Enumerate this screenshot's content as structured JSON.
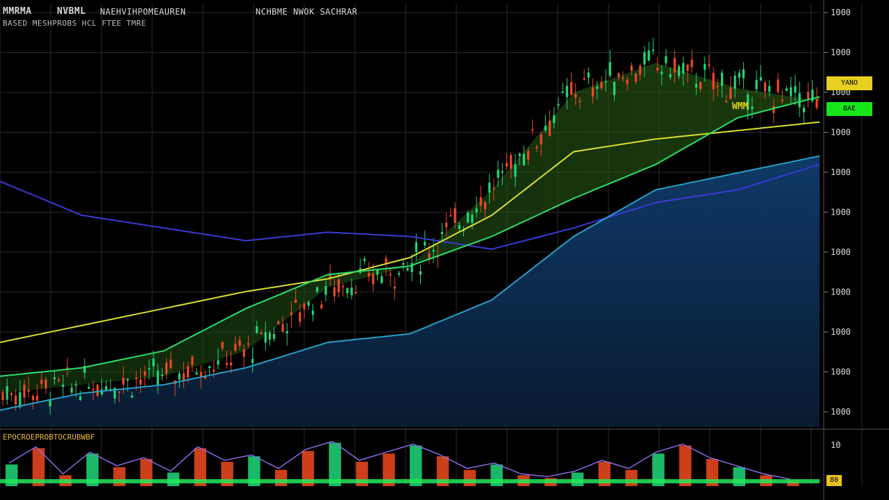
{
  "header": {
    "symbol": "MMRMA",
    "name": "NVBML",
    "description": "NAEHVIHPOMEAUREN",
    "extra": "NCHBME   NWOK  SACHRAR",
    "subtitle": "BASED  MESHPROBS  HCL  FTEE  TMRE"
  },
  "indicator": {
    "label": "EPOCROEPROBTOCRUBWBF",
    "tag": "80"
  },
  "overlay_label": "WMM",
  "price_tags": {
    "yellow": "YANO",
    "green": "BAE"
  },
  "colors": {
    "background": "#000000",
    "grid": "#2a2a2a",
    "up_candle": "#1fd97a",
    "down_candle": "#f04a1e",
    "area_fill": "#0f3a66",
    "cloud_fill": "#1f4a12",
    "ma_green": "#2adf6a",
    "ma_yellow": "#d9e030",
    "ma_blue": "#3a3ad8",
    "ma_teal": "#27a0c8",
    "tag_yellow": "#e8d020",
    "tag_green": "#19e619"
  },
  "chart_data": {
    "type": "line",
    "title": "",
    "xlabel": "",
    "ylabel": "",
    "y_axis_tick_labels": [
      "1000",
      "1000",
      "1000",
      "1000",
      "1000",
      "1000",
      "1000",
      "1000",
      "1000",
      "1000",
      "1000"
    ],
    "indicator_axis_tick_label": "10",
    "ylim": [
      0,
      100
    ],
    "x": [
      0,
      10,
      20,
      30,
      40,
      50,
      60,
      70,
      80,
      90,
      100
    ],
    "series": [
      {
        "values": [
          8,
          10,
          12,
          18,
          33,
          38,
          56,
          79,
          86,
          80,
          77
        ]
      },
      {
        "values": [
          58,
          50,
          47,
          44,
          46,
          45,
          42,
          47,
          53,
          56,
          62
        ]
      },
      {
        "values": [
          20,
          24,
          28,
          32,
          35,
          40,
          50,
          65,
          68,
          70,
          72
        ]
      },
      {
        "values": [
          12,
          14,
          18,
          28,
          36,
          38,
          45,
          54,
          62,
          73,
          78
        ]
      },
      {
        "values": [
          4,
          8,
          10,
          14,
          20,
          22,
          30,
          45,
          56,
          60,
          64
        ]
      }
    ],
    "indicator": {
      "ylim": [
        0,
        100
      ],
      "values": [
        40,
        70,
        20,
        60,
        35,
        50,
        25,
        70,
        45,
        55,
        30,
        65,
        80,
        45,
        60,
        75,
        55,
        30,
        40,
        20,
        15,
        25,
        45,
        30,
        60,
        75,
        50,
        35,
        20,
        10
      ]
    }
  }
}
